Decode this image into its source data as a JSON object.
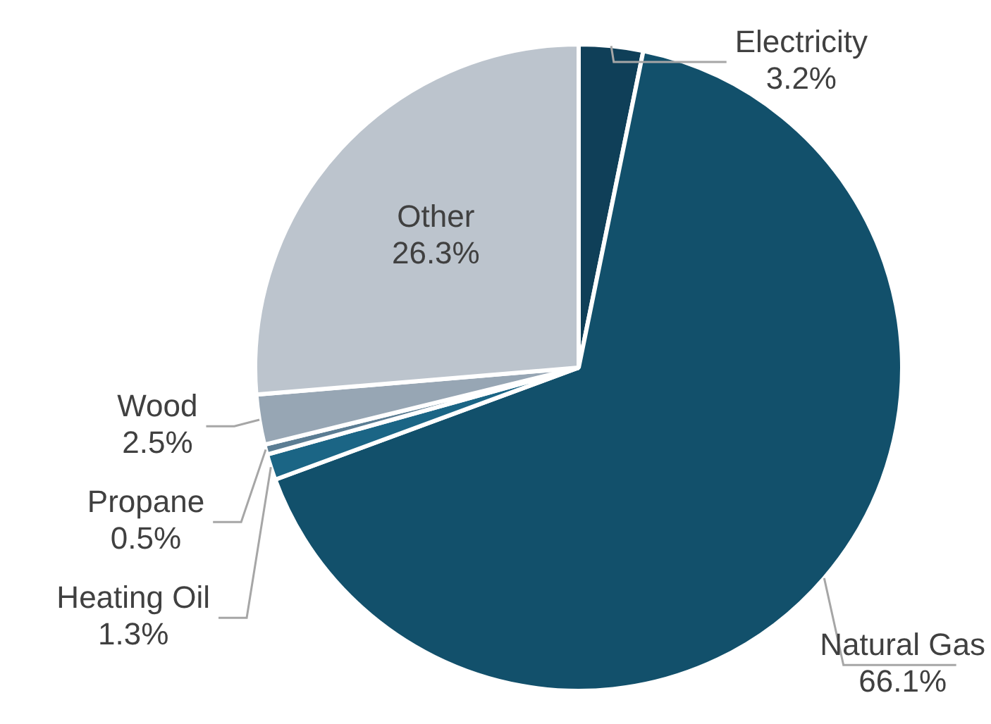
{
  "chart_data": {
    "type": "pie",
    "categories": [
      "Electricity",
      "Natural Gas",
      "Heating Oil",
      "Propane",
      "Wood",
      "Other"
    ],
    "values": [
      3.2,
      66.1,
      1.3,
      0.5,
      2.5,
      26.3
    ],
    "colors": [
      "#0f3f58",
      "#12506b",
      "#1b6585",
      "#5b7d93",
      "#97a6b4",
      "#bcc4cd"
    ],
    "value_labels": [
      "3.2%",
      "66.1%",
      "1.3%",
      "0.5%",
      "2.5%",
      "26.3%"
    ],
    "legend": false
  }
}
